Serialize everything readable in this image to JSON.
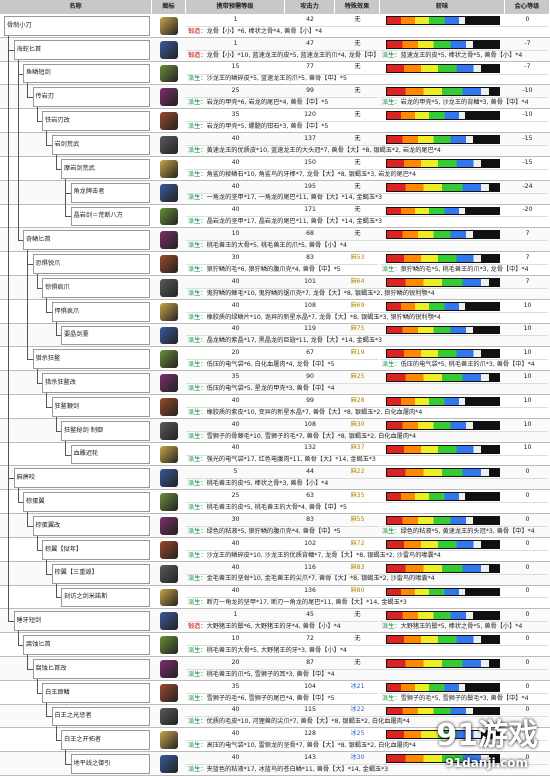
{
  "header": [
    "名称",
    "图标",
    "携带预需等级",
    "攻击力",
    "特殊效果",
    "斩味",
    "会心等级"
  ],
  "weapons": [
    {
      "name": "骨制小刀",
      "level": 1,
      "attack": 42,
      "special": "无",
      "affinity": 0,
      "materials": [
        {
          "kind": "锻造：",
          "text": "龙骨【小】*6, 棒状之骨*4, 兽骨【小】*4"
        }
      ]
    },
    {
      "name": "海蛇匕首",
      "level": 1,
      "attack": 47,
      "special": "无",
      "affinity": -7,
      "materials": [
        {
          "kind": "锻造：",
          "text": "龙骨【小】*10, 蓝速龙王的皮*5, 蓝速龙王的爪*4, 龙骨【中】*5"
        },
        {
          "kind": "派生：",
          "text": "蓝速龙王的皮*5, 棒状之骨*5, 兽骨【小】*4"
        }
      ]
    },
    {
      "name": "鱼鳞短剑",
      "level": 15,
      "attack": 77,
      "special": "无",
      "affinity": -7,
      "materials": [
        {
          "kind": "派生：",
          "text": "沙龙王的鳞碎皮*5, 蓝速龙王的爪*5, 兽骨【中】*5"
        }
      ]
    },
    {
      "name": "传岩刃",
      "level": 25,
      "attack": 99,
      "special": "无",
      "affinity": -10,
      "materials": [
        {
          "kind": "派生：",
          "text": "岩龙的甲壳*6, 岩龙的尾巴*4, 兽骨【中】*5"
        },
        {
          "kind": "派生：",
          "text": "岩龙的甲壳*5, 沙龙王的背鳍*3, 兽骨【中】*4"
        }
      ]
    },
    {
      "name": "铁岩刃改",
      "level": 35,
      "attack": 120,
      "special": "无",
      "affinity": -10,
      "materials": [
        {
          "kind": "派生：",
          "text": "岩龙的甲壳*5, 螺髓的钳石*3, 兽骨【中】*5"
        }
      ]
    },
    {
      "name": "岩剑荒武",
      "level": 40,
      "attack": 137,
      "special": "无",
      "affinity": -15,
      "materials": [
        {
          "kind": "派生：",
          "text": "黄速龙王的优质皮*10, 蓝速龙王的大头冠*7, 兽骨【大】*8, 银蝎玉*2, 岩龙的尾巴*4"
        }
      ]
    },
    {
      "name": "摩岩剑荒武",
      "level": 40,
      "attack": 150,
      "special": "无",
      "affinity": -15,
      "materials": [
        {
          "kind": "派生：",
          "text": "角鲨的棱鳞石*10, 角鲨鸟的牙棒*7, 龙骨【大】*8, 银蝎玉*3, 岩龙的尾巴*4"
        }
      ]
    },
    {
      "name": "角龙牌击者",
      "level": 40,
      "attack": 195,
      "special": "无",
      "affinity": -24,
      "materials": [
        {
          "kind": "派生：",
          "text": "一角龙的坚甲*17, 一角龙的尾巴*11, 兽骨【大】*14, 金蝎玉*3"
        }
      ]
    },
    {
      "name": "晶岩剑＝荒断八方",
      "level": 40,
      "attack": 171,
      "special": "无",
      "affinity": -20,
      "materials": [
        {
          "kind": "派生：",
          "text": "晶岩龙的坚甲*17, 晶岩龙的尾巴*11, 兽骨【大】*14, 金蝎玉*3"
        }
      ]
    },
    {
      "name": "奇鳞匕首",
      "level": 10,
      "attack": 68,
      "special": "无",
      "affinity": 7,
      "materials": [
        {
          "kind": "派生：",
          "text": "桃毛兽王的大骨*5, 桃毛兽王的爪*5, 兽骨【小】*4"
        }
      ]
    },
    {
      "name": "恐惧锐爪",
      "level": 30,
      "attack": 83,
      "special": "麻53",
      "affinity": 7,
      "materials": [
        {
          "kind": "派生：",
          "text": "狼狞鳞的毛*6, 狼狞鳞的腹爪壳*4, 兽骨【中】*5"
        },
        {
          "kind": "派生：",
          "text": "狼狞鳞的毛*5, 桃毛兽王的爪*3, 龙骨【中】*4"
        }
      ]
    },
    {
      "name": "惊惧疯爪",
      "level": 40,
      "attack": 101,
      "special": "麻64",
      "affinity": 7,
      "materials": [
        {
          "kind": "派生：",
          "text": "鬼狩鳞的棘毛*10, 鬼狩鳞的锯爪壳*7, 龙骨【大】*8, 银蝎玉*2, 狼狞鳞的锐利颚*4"
        }
      ]
    },
    {
      "name": "悍惧疯爪",
      "level": 40,
      "attack": 108,
      "special": "麻69",
      "affinity": 10,
      "materials": [
        {
          "kind": "派生：",
          "text": "橡胶质的绿鳞片*10, 诡异的新星水晶*7, 龙骨【大】*8, 银蝎玉*3, 狼狞鳞的锐利颚*4"
        }
      ]
    },
    {
      "name": "要晶剑薹",
      "level": 40,
      "attack": 119,
      "special": "麻75",
      "affinity": 10,
      "materials": [
        {
          "kind": "派生：",
          "text": "晶龙鳞的紫晶*17, 黑晶龙的巨翅*11, 龙骨【大】*14, 金蝎玉*3"
        }
      ]
    },
    {
      "name": "猎杀狂鳌",
      "level": 20,
      "attack": 67,
      "special": "麻19",
      "affinity": 10,
      "materials": [
        {
          "kind": "派生：",
          "text": "低压的电气袋*6, 白化血屠肉*4, 龙骨【中】*5"
        },
        {
          "kind": "派生：",
          "text": "低压的电气袋*5, 桃毛兽王的爪*3, 兽骨【中】*4"
        }
      ]
    },
    {
      "name": "猎杀狂鳌改",
      "level": 35,
      "attack": 90,
      "special": "麻25",
      "affinity": 10,
      "materials": [
        {
          "kind": "派生：",
          "text": "低压的电气袋*5, 星龙的甲壳*3, 兽骨【中】*4"
        }
      ]
    },
    {
      "name": "狂鳌鞭剑",
      "level": 40,
      "attack": 99,
      "special": "麻28",
      "affinity": 10,
      "materials": [
        {
          "kind": "派生：",
          "text": "橡胶质的紫皮*10, 变异的新星水晶*7, 兽骨【大】*8, 银蝎玉*2, 白化血屠肉*4"
        }
      ]
    },
    {
      "name": "狂鳌秘剑·制御",
      "level": 40,
      "attack": 108,
      "special": "麻30",
      "affinity": 10,
      "materials": [
        {
          "kind": "派生：",
          "text": "雪狮子的骨棘毛*10, 雪狮子的毛*7, 兽骨【大】*8, 银蝎玉*2, 白化血屠肉*4"
        }
      ]
    },
    {
      "name": "血雕迟轮",
      "level": 40,
      "attack": 132,
      "special": "麻37",
      "affinity": 10,
      "materials": [
        {
          "kind": "派生：",
          "text": "强光的电气袋*17, 红色电腹肉*11, 兽骨【大】*14, 金蝎玉*3"
        }
      ]
    },
    {
      "name": "麻痹咬",
      "level": 5,
      "attack": 44,
      "special": "麻22",
      "affinity": 0,
      "materials": [
        {
          "kind": "派生：",
          "text": "桃毛兽王的皮*5, 棒状之骨*3, 兽骨【小】*4"
        }
      ]
    },
    {
      "name": "棕蛋翼",
      "level": 25,
      "attack": 63,
      "special": "麻35",
      "affinity": 0,
      "materials": [
        {
          "kind": "派生：",
          "text": "桃毛兽王的皮*5, 桃毛兽王的大骨*4, 兽骨【中】*5"
        }
      ]
    },
    {
      "name": "棕蛋翼改",
      "level": 30,
      "attack": 83,
      "special": "麻55",
      "affinity": 0,
      "materials": [
        {
          "kind": "派生：",
          "text": "绿色的粘液*5, 狼狞鳞的腹爪壳*4, 兽骨【中】*5"
        },
        {
          "kind": "派生：",
          "text": "绿色的粘液*5, 黄速龙王的头冠*3, 兽骨【中】*4"
        }
      ]
    },
    {
      "name": "棕翼【狱年】",
      "level": 40,
      "attack": 102,
      "special": "麻72",
      "affinity": 0,
      "materials": [
        {
          "kind": "派生：",
          "text": "沙龙王的鳞碎皮*10, 沙龙王的优质背鳍*7, 龙骨【大】*8, 银蝎玉*2, 沙雷鸟的喙囊*4"
        }
      ]
    },
    {
      "name": "棕翼【三重毁】",
      "level": 40,
      "attack": 116,
      "special": "麻83",
      "affinity": 0,
      "materials": [
        {
          "kind": "派生：",
          "text": "金毛兽王的坚骨*10, 金毛兽王的尖爪*7, 兽骨【大】*8, 银蝎玉*2, 沙雷鸟的喙囊*4"
        }
      ]
    },
    {
      "name": "刻访之剑米諾斯",
      "level": 40,
      "attack": 136,
      "special": "麻80",
      "affinity": 0,
      "materials": [
        {
          "kind": "派生：",
          "text": "断刃一角龙的坚甲*17, 断刃一角龙的尾巴*11, 兽骨【大】*14, 金蝎玉*3"
        }
      ]
    },
    {
      "name": "睡牙短剑",
      "level": 1,
      "attack": 45,
      "special": "无",
      "affinity": 0,
      "materials": [
        {
          "kind": "锻造：",
          "text": "大野猪王的鬃*6, 大野猪王的牙*4, 兽骨【小】*4"
        },
        {
          "kind": "派生：",
          "text": "大野猪王的鬃*5, 棒状之骨*5, 兽骨【小】*4"
        }
      ]
    },
    {
      "name": "腐蚀匕首",
      "level": 10,
      "attack": 72,
      "special": "无",
      "affinity": 0,
      "materials": [
        {
          "kind": "派生：",
          "text": "桃毛兽王的大骨*5, 大野猪王的牙*3, 兽骨【小】*4"
        }
      ]
    },
    {
      "name": "腐蚀匕首改",
      "level": 20,
      "attack": 87,
      "special": "无",
      "affinity": 0,
      "materials": [
        {
          "kind": "派生：",
          "text": "桃毛兽王的爪*5, 雪狮子的耳*3, 兽骨【中】*4"
        }
      ]
    },
    {
      "name": "白王蹄鳍",
      "level": 35,
      "attack": 104,
      "special": "冰21",
      "affinity": 0,
      "materials": [
        {
          "kind": "派生：",
          "text": "雪狮子的毛*6, 雪狮子的尾巴*4, 兽骨【中】*5"
        },
        {
          "kind": "派生：",
          "text": "雪狮子的毛*5, 雪狮子的鬃毛*3, 兽骨【中】*4"
        }
      ]
    },
    {
      "name": "白王之光惩者",
      "level": 40,
      "attack": 115,
      "special": "冰22",
      "affinity": 0,
      "materials": [
        {
          "kind": "派生：",
          "text": "优质的毛皮*10, 河狸兽的尖爪*7, 兽骨【大】*8, 银蝎玉*2, 白化血屠肉*4"
        }
      ]
    },
    {
      "name": "白王之开拓者",
      "level": 40,
      "attack": 128,
      "special": "冰25",
      "affinity": 0,
      "materials": [
        {
          "kind": "派生：",
          "text": "高压的电气袋*10, 雷狼龙的坚骨*7, 兽骨【大】*8, 银蝎玉*2, 白化血屠肉*4"
        }
      ]
    },
    {
      "name": "地平线之御引",
      "level": 40,
      "attack": 143,
      "special": "冰30",
      "affinity": 0,
      "materials": [
        {
          "kind": "派生：",
          "text": "夹蓝色的粘液*17, 冰蓝鸟的苍白鳞*11, 兽骨【大】*14, 金蝎玉*3"
        }
      ]
    }
  ],
  "watermark": {
    "title": "91游戏",
    "site": "91danji.com"
  }
}
